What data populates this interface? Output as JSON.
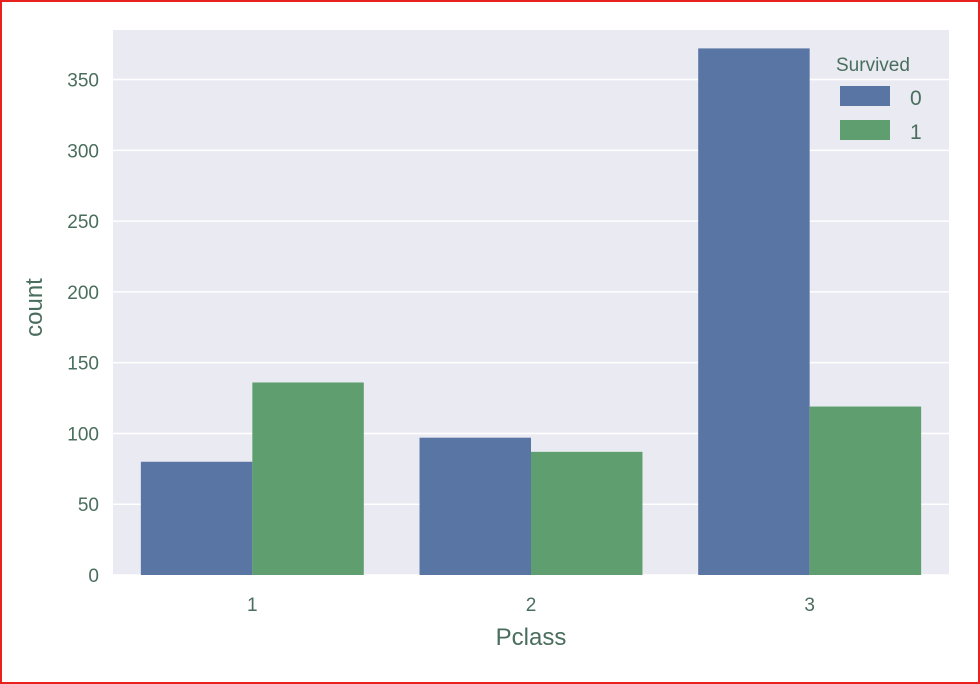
{
  "chart_data": {
    "type": "bar",
    "title": "",
    "xlabel": "Pclass",
    "ylabel": "count",
    "categories": [
      "1",
      "2",
      "3"
    ],
    "series": [
      {
        "name": "0",
        "color": "#5875a4",
        "values": [
          80,
          97,
          372
        ]
      },
      {
        "name": "1",
        "color": "#5f9e6e",
        "values": [
          136,
          87,
          119
        ]
      }
    ],
    "ylim": [
      0,
      385
    ],
    "yticks": [
      0,
      50,
      100,
      150,
      200,
      250,
      300,
      350
    ],
    "grid": true,
    "legend": {
      "title": "Survived",
      "placement": "top-right"
    },
    "background_color": "#eaeaf2",
    "grid_color": "#ffffff",
    "text_color": "#4a6e5d"
  }
}
